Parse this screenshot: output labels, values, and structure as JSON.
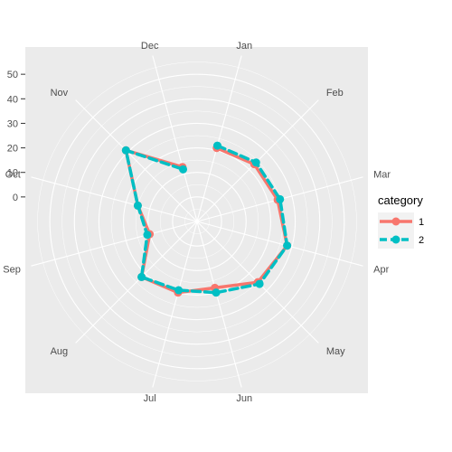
{
  "chart_data": {
    "type": "line",
    "coord": "polar",
    "categories": [
      "Jan",
      "Feb",
      "Mar",
      "Apr",
      "May",
      "Jun",
      "Jul",
      "Aug",
      "Sep",
      "Oct",
      "Nov",
      "Dec"
    ],
    "series": [
      {
        "name": "1",
        "color": "#F8766D",
        "style": "solid",
        "values": [
          21,
          23,
          24,
          28,
          25,
          18,
          20,
          22,
          10,
          15,
          31,
          13
        ]
      },
      {
        "name": "2",
        "color": "#00BFC4",
        "style": "dashed",
        "values": [
          22,
          24,
          25,
          28,
          26,
          20,
          19,
          22,
          11,
          15,
          31,
          12
        ]
      }
    ],
    "radial_ticks": [
      "0",
      "10",
      "20",
      "30",
      "40",
      "50"
    ],
    "radial_range": [
      -10,
      60
    ],
    "grid": true,
    "legend": {
      "title": "category",
      "position": "right"
    },
    "title": "",
    "xlabel": "",
    "ylabel": ""
  }
}
